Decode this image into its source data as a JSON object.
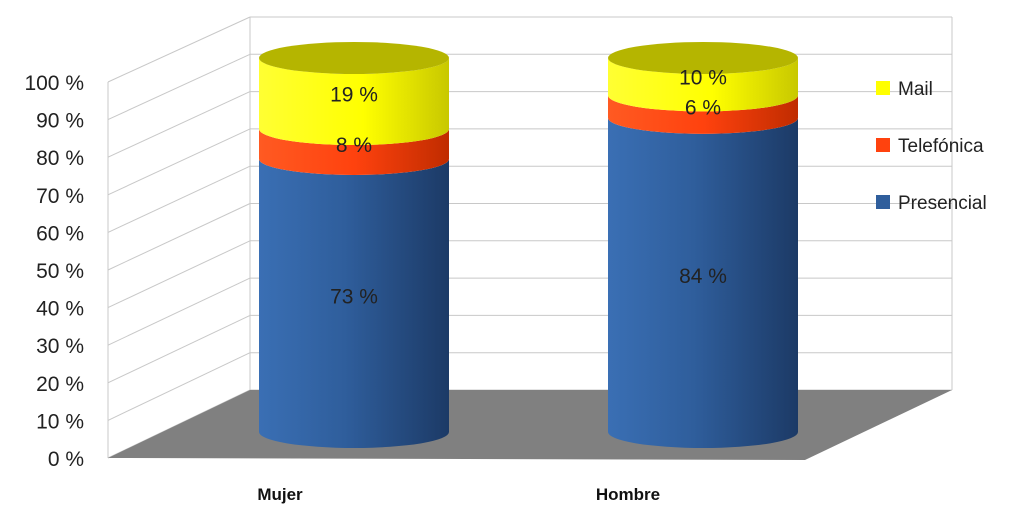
{
  "chart_data": {
    "type": "bar",
    "stacked": true,
    "three_d": true,
    "bar_shape": "cylinder",
    "categories": [
      "Mujer",
      "Hombre"
    ],
    "series": [
      {
        "name": "Presencial",
        "values": [
          73,
          84
        ],
        "color": "#2f5e9c",
        "labels": [
          "73 %",
          "84 %"
        ]
      },
      {
        "name": "Telefónica",
        "values": [
          8,
          6
        ],
        "color": "#ff420e",
        "labels": [
          "8 %",
          "6 %"
        ]
      },
      {
        "name": "Mail",
        "values": [
          19,
          10
        ],
        "color": "#ffff00",
        "labels": [
          "19 %",
          "10 %"
        ]
      }
    ],
    "ylim": [
      0,
      100
    ],
    "yticks": [
      "0 %",
      "10 %",
      "20 %",
      "30 %",
      "40 %",
      "50 %",
      "60 %",
      "70 %",
      "80 %",
      "90 %",
      "100 %"
    ],
    "grid": true,
    "legend": {
      "position": "right",
      "entries": [
        "Mail",
        "Telefónica",
        "Presencial"
      ]
    },
    "floor_color": "#808080"
  }
}
